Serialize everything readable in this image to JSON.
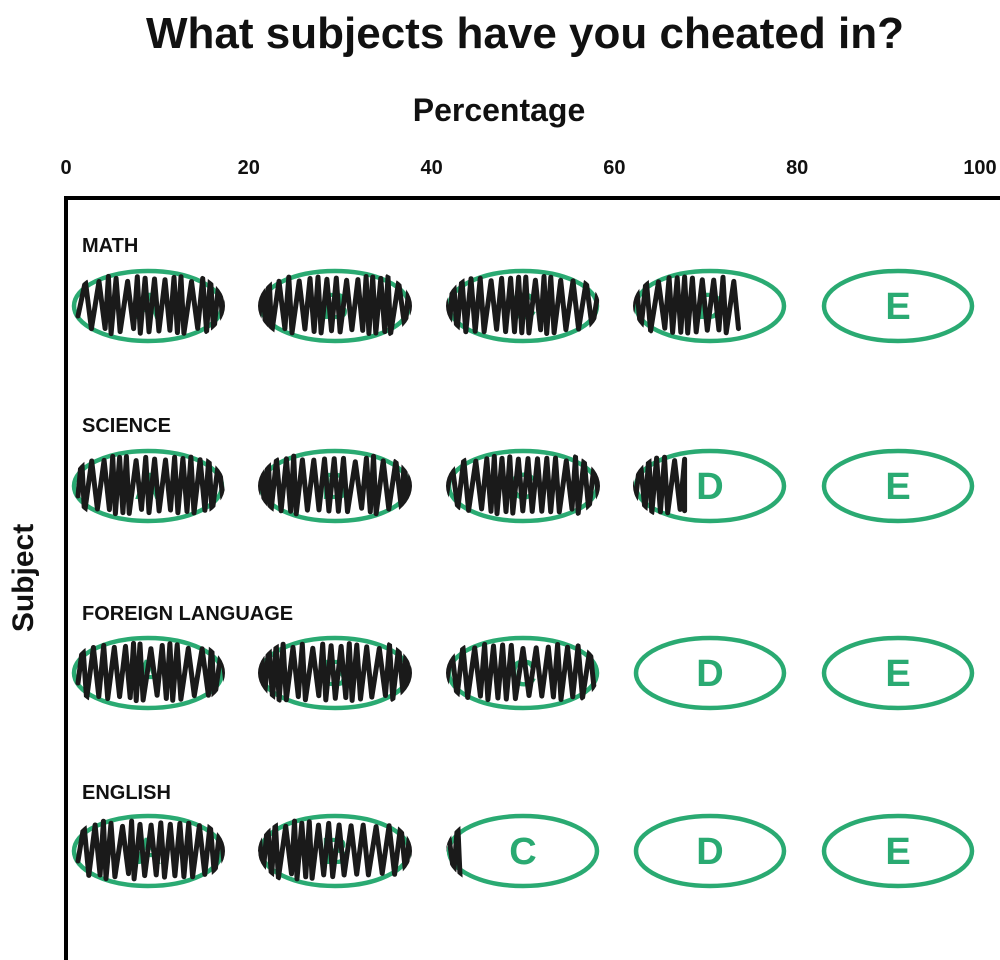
{
  "colors": {
    "bubble": "#2aaa72",
    "scribble": "#1a1a1a",
    "axis": "#000000",
    "text": "#111111"
  },
  "chart_data": {
    "type": "bar",
    "title": "What subjects have you cheated in?",
    "xlabel": "Percentage",
    "ylabel": "Subject",
    "xlim": [
      0,
      100
    ],
    "xticks": [
      "0",
      "20",
      "40",
      "60",
      "80",
      "100"
    ],
    "categories": [
      "MATH",
      "SCIENCE",
      "FOREIGN LANGUAGE",
      "ENGLISH"
    ],
    "values": [
      74,
      68,
      58,
      43
    ],
    "bubble_letters": [
      "A",
      "B",
      "C",
      "D",
      "E"
    ],
    "grid": false,
    "legend": "none"
  }
}
